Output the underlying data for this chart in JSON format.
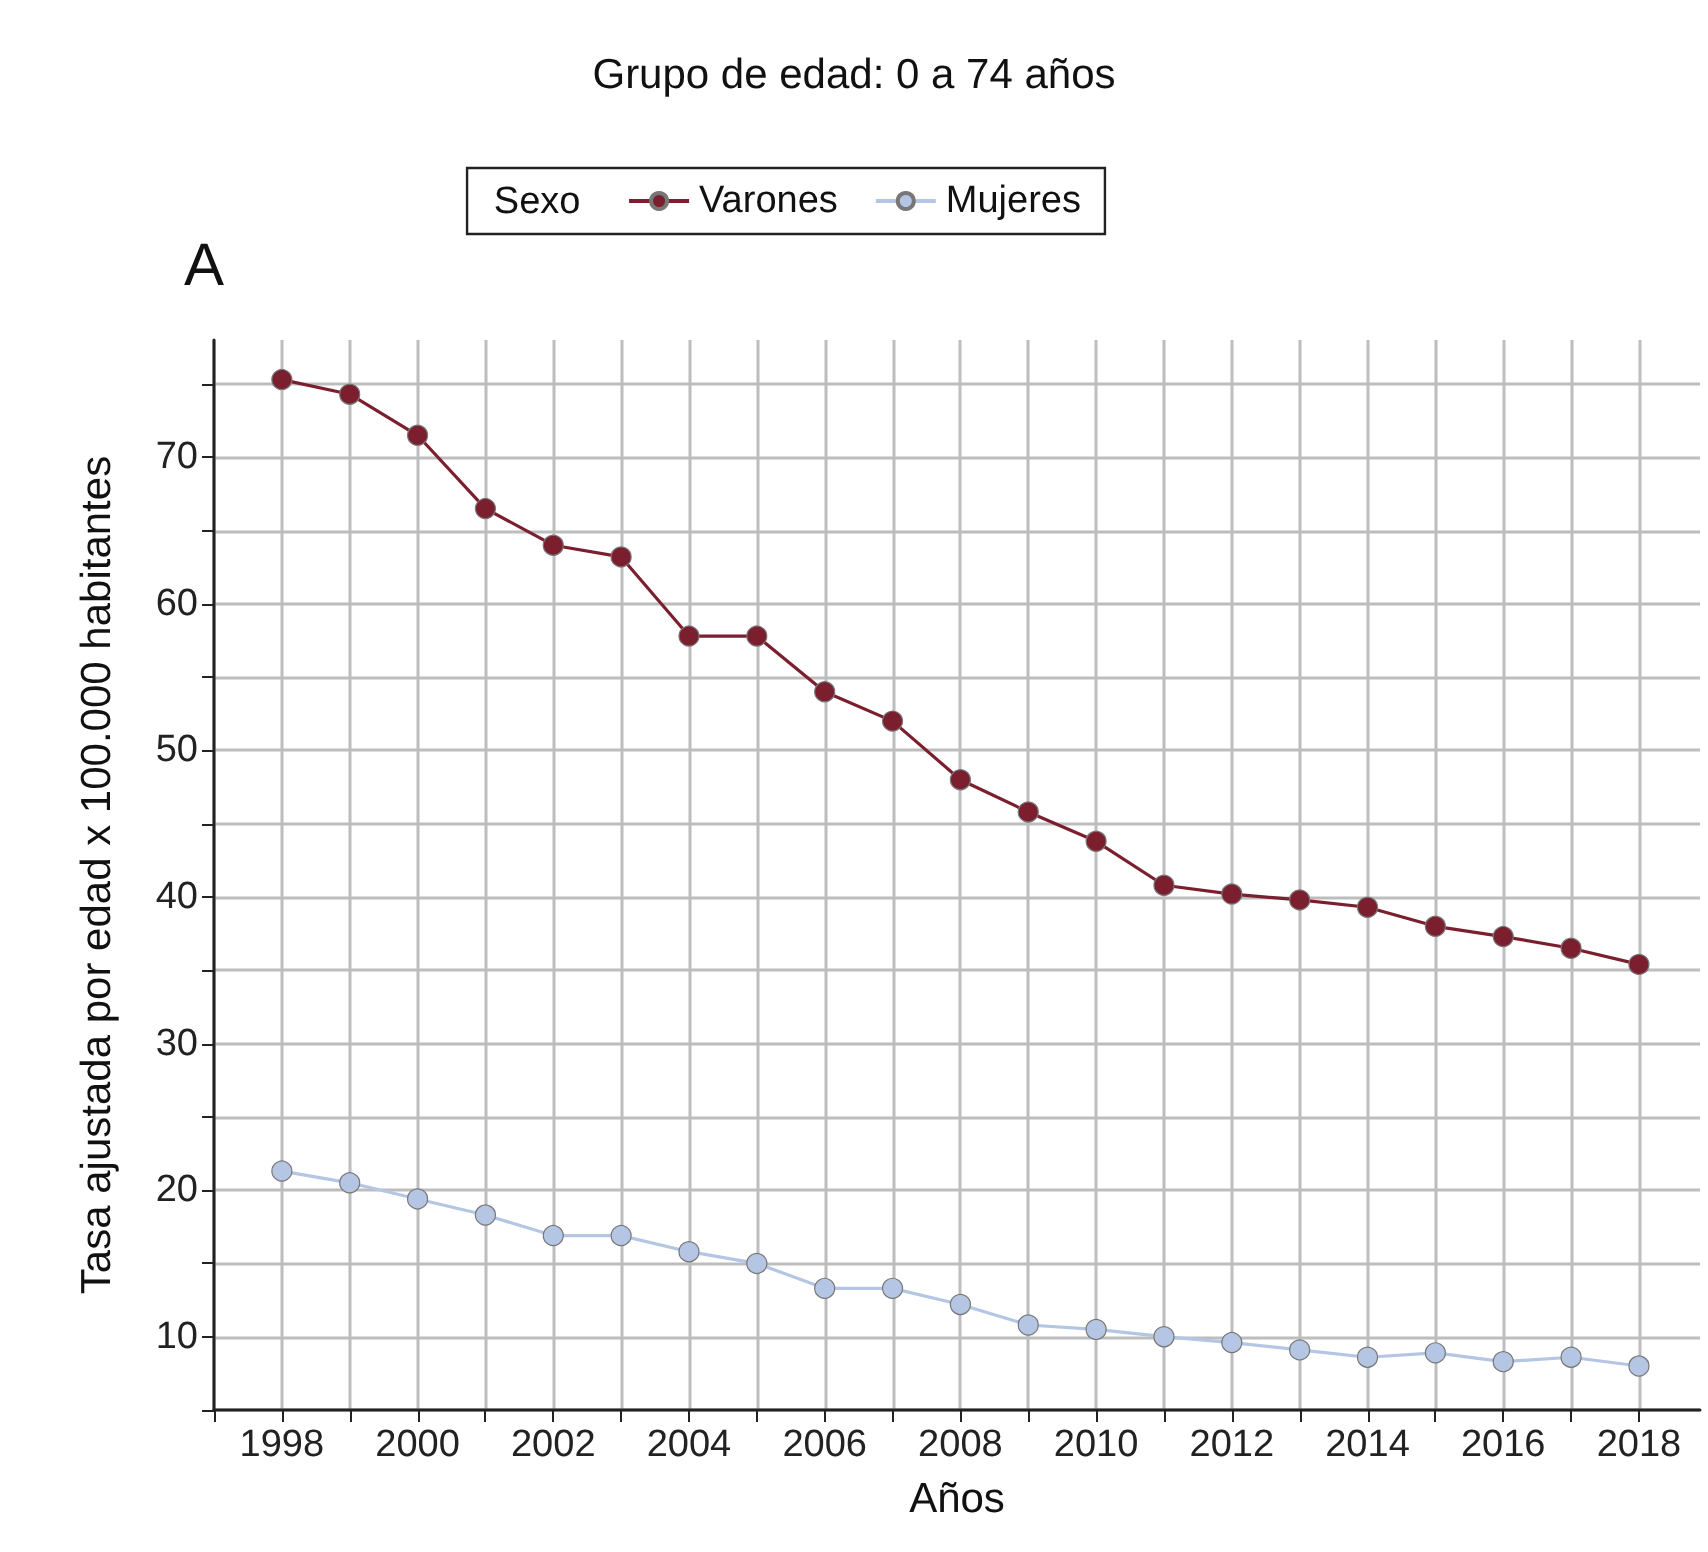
{
  "chart_data": {
    "type": "line",
    "title": "Grupo de edad: 0 a 74 años",
    "xlabel": "Años",
    "ylabel": "Tasa ajustada por edad x 100.000 habitantes",
    "legend_title": "Sexo",
    "annotations": [
      "A"
    ],
    "x": [
      1998,
      1999,
      2000,
      2001,
      2002,
      2003,
      2004,
      2005,
      2006,
      2007,
      2008,
      2009,
      2010,
      2011,
      2012,
      2013,
      2014,
      2015,
      2016,
      2017,
      2018
    ],
    "series": [
      {
        "name": "Varones",
        "color": "#7b1f2e",
        "values": [
          75.3,
          74.3,
          71.5,
          66.5,
          64,
          63.2,
          57.8,
          57.8,
          54,
          52,
          48,
          45.8,
          43.8,
          40.8,
          40.2,
          39.8,
          39.3,
          38,
          37.3,
          36.5,
          35.4
        ]
      },
      {
        "name": "Mujeres",
        "color": "#b4c6e4",
        "values": [
          21.3,
          20.5,
          19.4,
          18.3,
          16.9,
          16.9,
          15.8,
          15,
          13.3,
          13.3,
          12.2,
          10.8,
          10.5,
          10,
          9.6,
          9.1,
          8.6,
          8.9,
          8.3,
          8.6,
          8.0
        ]
      }
    ],
    "xlim": [
      1997,
      2018.9
    ],
    "xticks": [
      {
        "value": 1997,
        "label": null
      },
      1998,
      {
        "value": 1999,
        "label": null
      },
      2000,
      {
        "value": 2001,
        "label": null
      },
      2002,
      {
        "value": 2003,
        "label": null
      },
      2004,
      {
        "value": 2005,
        "label": null
      },
      2006,
      {
        "value": 2007,
        "label": null
      },
      2008,
      {
        "value": 2009,
        "label": null
      },
      2010,
      {
        "value": 2011,
        "label": null
      },
      2012,
      {
        "value": 2013,
        "label": null
      },
      2014,
      {
        "value": 2015,
        "label": null
      },
      2016,
      {
        "value": 2017,
        "label": null
      },
      2018
    ],
    "ylim": [
      5,
      78
    ],
    "yticks": [
      {
        "value": 5,
        "label": null
      },
      10,
      {
        "value": 15,
        "label": null
      },
      20,
      {
        "value": 25,
        "label": null
      },
      30,
      {
        "value": 35,
        "label": null
      },
      40,
      {
        "value": 45,
        "label": null
      },
      50,
      {
        "value": 55,
        "label": null
      },
      60,
      {
        "value": 65,
        "label": null
      },
      70,
      {
        "value": 75,
        "label": null
      }
    ],
    "grid": true,
    "legend": "top",
    "marker": "circle",
    "line_style": "solid"
  }
}
